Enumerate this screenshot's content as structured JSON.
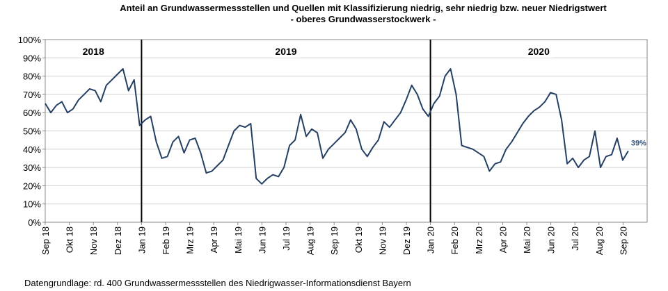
{
  "chart_data": {
    "type": "line",
    "title": "Anteil  an Grundwassermessstellen und Quellen mit Klassifizierung niedrig, sehr niedrig bzw. neuer Niedrigstwert",
    "subtitle": "- oberes Grundwasserstockwerk -",
    "footnote": "Datengrundlage:  rd. 400 Grundwassermessstellen  des Niedrigwasser-Informationsdienst  Bayern",
    "year_labels": [
      "2018",
      "2019",
      "2020"
    ],
    "x_tick_labels": [
      "Sep 18",
      "Okt 18",
      "Nov 18",
      "Dez 18",
      "Jan 19",
      "Feb 19",
      "Mrz 19",
      "Apr 19",
      "Mai 19",
      "Jun 19",
      "Jul 19",
      "Aug 19",
      "Sep 19",
      "Okt 19",
      "Nov 19",
      "Dez 19",
      "Jan 20",
      "Feb 20",
      "Mrz 20",
      "Apr 20",
      "Mai 20",
      "Jun 20",
      "Jul 20",
      "Aug 20",
      "Sep 20"
    ],
    "series": [
      {
        "color": "#233f63",
        "values": [
          65,
          60,
          64,
          66,
          60,
          62,
          67,
          70,
          73,
          72,
          66,
          75,
          78,
          81,
          84,
          72,
          78,
          53,
          56,
          58,
          44,
          35,
          36,
          44,
          47,
          38,
          45,
          46,
          38,
          27,
          28,
          31,
          34,
          42,
          50,
          53,
          52,
          54,
          24,
          21,
          24,
          26,
          25,
          30,
          42,
          45,
          59,
          47,
          51,
          49,
          35,
          40,
          43,
          46,
          49,
          56,
          51,
          40,
          36,
          41,
          45,
          55,
          52,
          56,
          60,
          67,
          75,
          70,
          62,
          58,
          65,
          69,
          80,
          84,
          70,
          42,
          41,
          40,
          38,
          36,
          28,
          32,
          33,
          40,
          44,
          49,
          54,
          58,
          61,
          63,
          66,
          71,
          70,
          56,
          32,
          35,
          30,
          34,
          36,
          50,
          30,
          36,
          37,
          46,
          34,
          39
        ]
      }
    ],
    "last_value_label": "39%",
    "ylim": [
      0,
      100
    ],
    "yticks": [
      {
        "value": 0,
        "label": "0%"
      },
      {
        "value": 10,
        "label": "10%"
      },
      {
        "value": 20,
        "label": "20%"
      },
      {
        "value": 30,
        "label": "30%"
      },
      {
        "value": 40,
        "label": "40%"
      },
      {
        "value": 50,
        "label": "50%"
      },
      {
        "value": 60,
        "label": "60%"
      },
      {
        "value": 70,
        "label": "70%"
      },
      {
        "value": 80,
        "label": "80%"
      },
      {
        "value": 90,
        "label": "90%"
      },
      {
        "value": 100,
        "label": "100%"
      }
    ],
    "grid": true
  }
}
